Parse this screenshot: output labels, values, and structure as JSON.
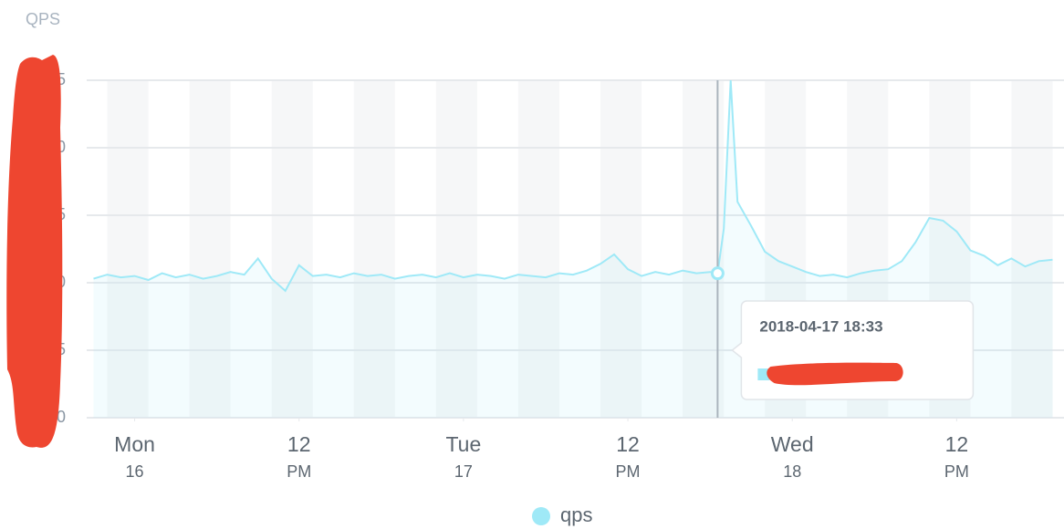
{
  "chart_data": {
    "type": "area",
    "y_label": "QPS",
    "x": [
      "2018-04-15 21:00",
      "2018-04-15 22:00",
      "2018-04-15 23:00",
      "2018-04-16 00:00",
      "2018-04-16 01:00",
      "2018-04-16 02:00",
      "2018-04-16 03:00",
      "2018-04-16 04:00",
      "2018-04-16 05:00",
      "2018-04-16 06:00",
      "2018-04-16 07:00",
      "2018-04-16 08:00",
      "2018-04-16 09:00",
      "2018-04-16 10:00",
      "2018-04-16 11:00",
      "2018-04-16 12:00",
      "2018-04-16 13:00",
      "2018-04-16 14:00",
      "2018-04-16 15:00",
      "2018-04-16 16:00",
      "2018-04-16 17:00",
      "2018-04-16 18:00",
      "2018-04-16 19:00",
      "2018-04-16 20:00",
      "2018-04-16 21:00",
      "2018-04-16 22:00",
      "2018-04-16 23:00",
      "2018-04-17 00:00",
      "2018-04-17 01:00",
      "2018-04-17 02:00",
      "2018-04-17 03:00",
      "2018-04-17 04:00",
      "2018-04-17 05:00",
      "2018-04-17 06:00",
      "2018-04-17 07:00",
      "2018-04-17 08:00",
      "2018-04-17 09:00",
      "2018-04-17 10:00",
      "2018-04-17 11:00",
      "2018-04-17 12:00",
      "2018-04-17 13:00",
      "2018-04-17 14:00",
      "2018-04-17 15:00",
      "2018-04-17 16:00",
      "2018-04-17 17:00",
      "2018-04-17 18:00",
      "2018-04-17 18:33",
      "2018-04-17 19:00",
      "2018-04-17 19:30",
      "2018-04-17 20:00",
      "2018-04-17 21:00",
      "2018-04-17 22:00",
      "2018-04-17 23:00",
      "2018-04-18 00:00",
      "2018-04-18 01:00",
      "2018-04-18 02:00",
      "2018-04-18 03:00",
      "2018-04-18 04:00",
      "2018-04-18 05:00",
      "2018-04-18 06:00",
      "2018-04-18 07:00",
      "2018-04-18 08:00",
      "2018-04-18 09:00",
      "2018-04-18 10:00",
      "2018-04-18 11:00",
      "2018-04-18 12:00",
      "2018-04-18 13:00",
      "2018-04-18 14:00",
      "2018-04-18 15:00",
      "2018-04-18 16:00",
      "2018-04-18 17:00",
      "2018-04-18 18:00",
      "2018-04-18 19:00"
    ],
    "series": [
      {
        "name": "qps",
        "color": "#9fe9f7",
        "values": [
          10.3,
          10.6,
          10.4,
          10.5,
          10.2,
          10.7,
          10.4,
          10.6,
          10.3,
          10.5,
          10.8,
          10.6,
          11.8,
          10.3,
          9.4,
          11.3,
          10.5,
          10.6,
          10.4,
          10.7,
          10.5,
          10.6,
          10.3,
          10.5,
          10.6,
          10.4,
          10.7,
          10.4,
          10.6,
          10.5,
          10.3,
          10.6,
          10.5,
          10.4,
          10.7,
          10.6,
          10.9,
          11.4,
          12.1,
          11.0,
          10.5,
          10.8,
          10.6,
          10.9,
          10.7,
          10.8,
          10.7,
          14.0,
          25,
          16.0,
          14.2,
          12.3,
          11.6,
          11.2,
          10.8,
          10.5,
          10.6,
          10.4,
          10.7,
          10.9,
          11.0,
          11.6,
          13.0,
          14.8,
          14.6,
          13.8,
          12.4,
          12.0,
          11.3,
          11.8,
          11.2,
          11.6,
          11.7
        ]
      }
    ],
    "xlim": [
      "2018-04-15 20:30",
      "2018-04-18 19:50"
    ],
    "xticks": [
      {
        "value": "2018-04-16 00:00",
        "label": [
          "Mon",
          "16"
        ]
      },
      {
        "value": "2018-04-16 12:00",
        "label": [
          "12",
          "PM"
        ]
      },
      {
        "value": "2018-04-17 00:00",
        "label": [
          "Tue",
          "17"
        ]
      },
      {
        "value": "2018-04-17 12:00",
        "label": [
          "12",
          "PM"
        ]
      },
      {
        "value": "2018-04-18 00:00",
        "label": [
          "Wed",
          "18"
        ]
      },
      {
        "value": "2018-04-18 12:00",
        "label": [
          "12",
          "PM"
        ]
      }
    ],
    "ylim": [
      0,
      25
    ],
    "yticks": [
      0,
      5,
      10,
      15,
      20,
      25
    ],
    "grid": true,
    "tooltip": {
      "x": "2018-04-17 18:33",
      "title": "2018-04-17 18:33"
    }
  }
}
